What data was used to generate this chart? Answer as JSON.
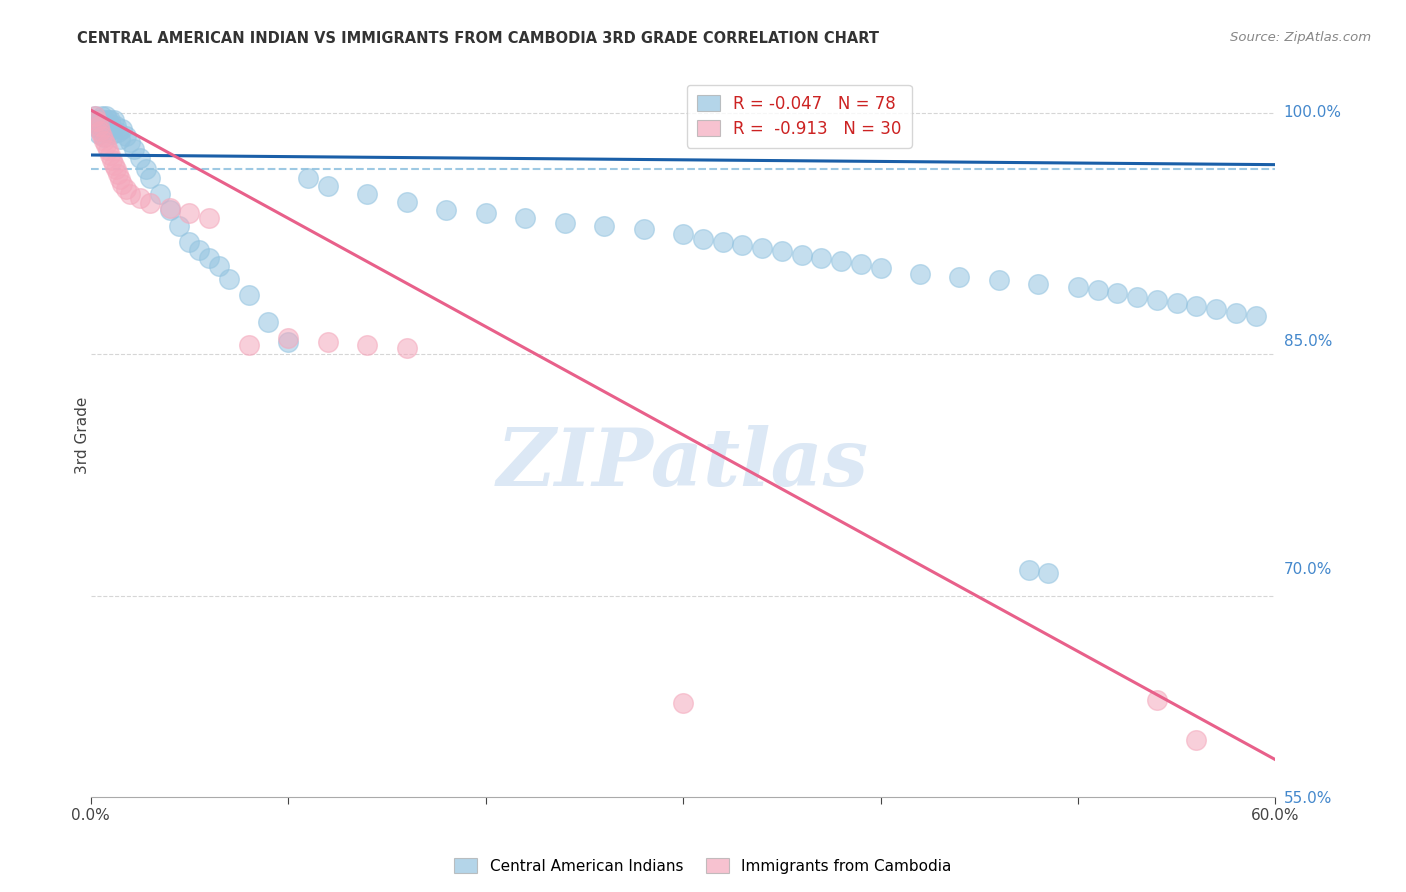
{
  "title": "CENTRAL AMERICAN INDIAN VS IMMIGRANTS FROM CAMBODIA 3RD GRADE CORRELATION CHART",
  "source": "Source: ZipAtlas.com",
  "ylabel": "3rd Grade",
  "xlim": [
    0.0,
    0.6
  ],
  "ylim": [
    0.575,
    1.025
  ],
  "blue_R": -0.047,
  "blue_N": 78,
  "pink_R": -0.913,
  "pink_N": 30,
  "blue_color": "#94c4e0",
  "pink_color": "#f4a8bc",
  "blue_line_color": "#1a5fa8",
  "pink_line_color": "#e8608a",
  "dashed_line_color": "#94c4e0",
  "dashed_line_y": 0.965,
  "grid_color": "#cccccc",
  "watermark": "ZIPatlas",
  "watermark_color": "#dce8f5",
  "legend_label_blue": "Central American Indians",
  "legend_label_pink": "Immigrants from Cambodia",
  "right_tick_color": "#4488cc",
  "blue_trend_x": [
    0.0,
    0.6
  ],
  "blue_trend_y": [
    0.974,
    0.968
  ],
  "pink_trend_x": [
    0.0,
    0.6
  ],
  "pink_trend_y": [
    1.002,
    0.598
  ],
  "blue_x": [
    0.002,
    0.003,
    0.003,
    0.004,
    0.004,
    0.005,
    0.005,
    0.006,
    0.006,
    0.007,
    0.007,
    0.008,
    0.008,
    0.009,
    0.009,
    0.01,
    0.01,
    0.011,
    0.011,
    0.012,
    0.013,
    0.014,
    0.015,
    0.016,
    0.018,
    0.02,
    0.022,
    0.025,
    0.028,
    0.03,
    0.035,
    0.04,
    0.045,
    0.05,
    0.055,
    0.06,
    0.065,
    0.07,
    0.08,
    0.09,
    0.1,
    0.11,
    0.12,
    0.14,
    0.16,
    0.18,
    0.2,
    0.22,
    0.24,
    0.26,
    0.28,
    0.3,
    0.31,
    0.32,
    0.33,
    0.34,
    0.35,
    0.36,
    0.37,
    0.38,
    0.39,
    0.4,
    0.42,
    0.44,
    0.46,
    0.48,
    0.5,
    0.51,
    0.52,
    0.53,
    0.54,
    0.55,
    0.56,
    0.57,
    0.58,
    0.59,
    0.475,
    0.485
  ],
  "blue_y": [
    0.998,
    0.996,
    0.993,
    0.99,
    0.987,
    0.996,
    0.993,
    0.998,
    0.99,
    0.996,
    0.985,
    0.998,
    0.992,
    0.996,
    0.988,
    0.996,
    0.993,
    0.99,
    0.987,
    0.996,
    0.992,
    0.988,
    0.984,
    0.99,
    0.986,
    0.982,
    0.978,
    0.972,
    0.965,
    0.96,
    0.95,
    0.94,
    0.93,
    0.92,
    0.915,
    0.91,
    0.905,
    0.897,
    0.887,
    0.87,
    0.858,
    0.96,
    0.955,
    0.95,
    0.945,
    0.94,
    0.938,
    0.935,
    0.932,
    0.93,
    0.928,
    0.925,
    0.922,
    0.92,
    0.918,
    0.916,
    0.914,
    0.912,
    0.91,
    0.908,
    0.906,
    0.904,
    0.9,
    0.898,
    0.896,
    0.894,
    0.892,
    0.89,
    0.888,
    0.886,
    0.884,
    0.882,
    0.88,
    0.878,
    0.876,
    0.874,
    0.716,
    0.714
  ],
  "pink_x": [
    0.002,
    0.003,
    0.004,
    0.005,
    0.006,
    0.007,
    0.008,
    0.009,
    0.01,
    0.011,
    0.012,
    0.013,
    0.014,
    0.015,
    0.016,
    0.018,
    0.02,
    0.025,
    0.03,
    0.04,
    0.05,
    0.06,
    0.08,
    0.1,
    0.12,
    0.14,
    0.16,
    0.3,
    0.54,
    0.56
  ],
  "pink_y": [
    0.998,
    0.995,
    0.992,
    0.989,
    0.986,
    0.983,
    0.98,
    0.977,
    0.974,
    0.971,
    0.968,
    0.965,
    0.962,
    0.959,
    0.956,
    0.953,
    0.95,
    0.947,
    0.944,
    0.941,
    0.938,
    0.935,
    0.856,
    0.86,
    0.858,
    0.856,
    0.854,
    0.633,
    0.635,
    0.61
  ]
}
